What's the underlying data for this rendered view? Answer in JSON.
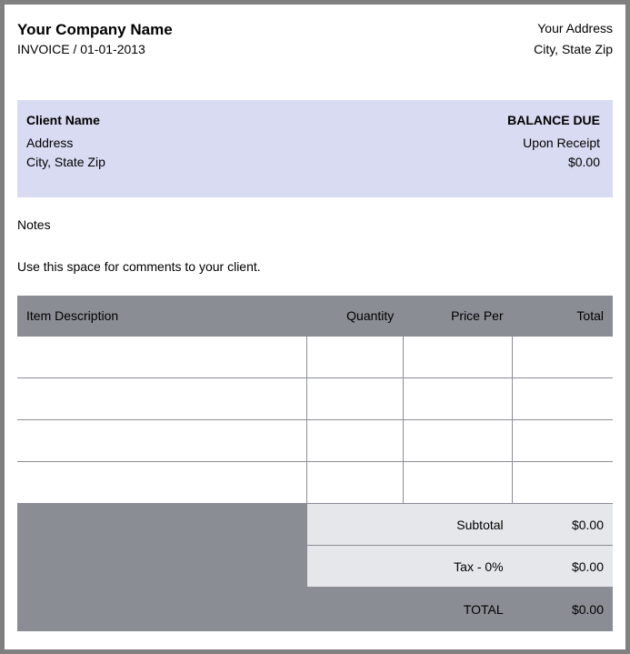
{
  "header": {
    "company_name": "Your Company Name",
    "invoice_label": "INVOICE / 01-01-2013",
    "address": "Your Address",
    "city_state_zip": "City, State Zip"
  },
  "client": {
    "name": "Client Name",
    "address": "Address",
    "city_state_zip": "City, State  Zip",
    "balance_due_label": "BALANCE DUE",
    "terms": "Upon Receipt",
    "balance_amount": "$0.00"
  },
  "notes": {
    "label": "Notes",
    "text": "Use this space  for comments to your client."
  },
  "items_table": {
    "columns": {
      "description": "Item Description",
      "quantity": "Quantity",
      "price_per": "Price Per",
      "total": "Total"
    },
    "rows": [
      {
        "description": "",
        "quantity": "",
        "price_per": "",
        "total": ""
      },
      {
        "description": "",
        "quantity": "",
        "price_per": "",
        "total": ""
      },
      {
        "description": "",
        "quantity": "",
        "price_per": "",
        "total": ""
      },
      {
        "description": "",
        "quantity": "",
        "price_per": "",
        "total": ""
      }
    ]
  },
  "summary": {
    "subtotal_label": "Subtotal",
    "subtotal_value": "$0.00",
    "tax_label": "Tax - 0%",
    "tax_value": "$0.00",
    "total_label": "TOTAL",
    "total_value": "$0.00"
  },
  "colors": {
    "page_bg": "#ffffff",
    "outer_bg": "#808080",
    "client_box_bg": "#d8dbf2",
    "table_header_bg": "#8a8d94",
    "summary_bg": "#e6e7ea",
    "border_color": "#8a8d94",
    "text_color": "#000000"
  }
}
